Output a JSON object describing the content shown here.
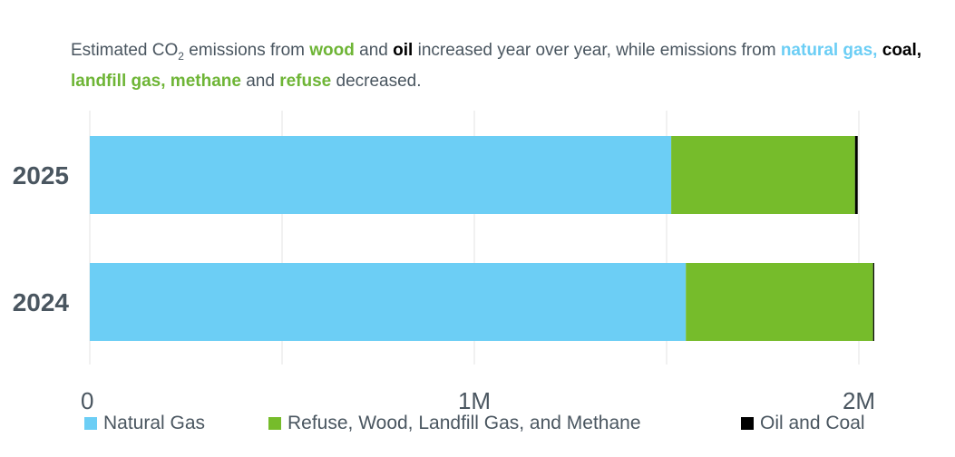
{
  "subtitle": {
    "p1": "Estimated CO",
    "co2_sub": "2",
    "p2": " emissions from ",
    "w_wood": "wood",
    "p3": " and ",
    "w_oil": "oil",
    "p4": " increased year over year, while emissions from ",
    "w_natural_gas": "natural gas,",
    "p5": " ",
    "w_coal": "coal,",
    "p6": " ",
    "w_landfill": "landfill gas, methane",
    "p7": " and ",
    "w_refuse": "refuse",
    "p8": " decreased.",
    "colors": {
      "green": "#6eb536",
      "blue": "#6ccef5",
      "black": "#000000"
    }
  },
  "chart_data": {
    "type": "bar",
    "orientation": "horizontal",
    "stacked": true,
    "categories": [
      "2025",
      "2024"
    ],
    "series": [
      {
        "name": "Natural Gas",
        "color": "#6ccef5",
        "values": [
          1512000,
          1550000
        ]
      },
      {
        "name": "Refuse, Wood, Landfill Gas, and Methane",
        "color": "#76bc2b",
        "values": [
          478000,
          487000
        ]
      },
      {
        "name": "Oil and Coal",
        "color": "#000000",
        "values": [
          7000,
          3000
        ]
      }
    ],
    "xlim": [
      0,
      2000000
    ],
    "xticks": [
      {
        "value": 0,
        "label": "0"
      },
      {
        "value": 1000000,
        "label": "1M"
      },
      {
        "value": 2000000,
        "label": "2M"
      }
    ],
    "gridlines": [
      0,
      500000,
      1000000,
      1500000,
      2000000
    ],
    "grid": true,
    "legend_position": "bottom"
  }
}
